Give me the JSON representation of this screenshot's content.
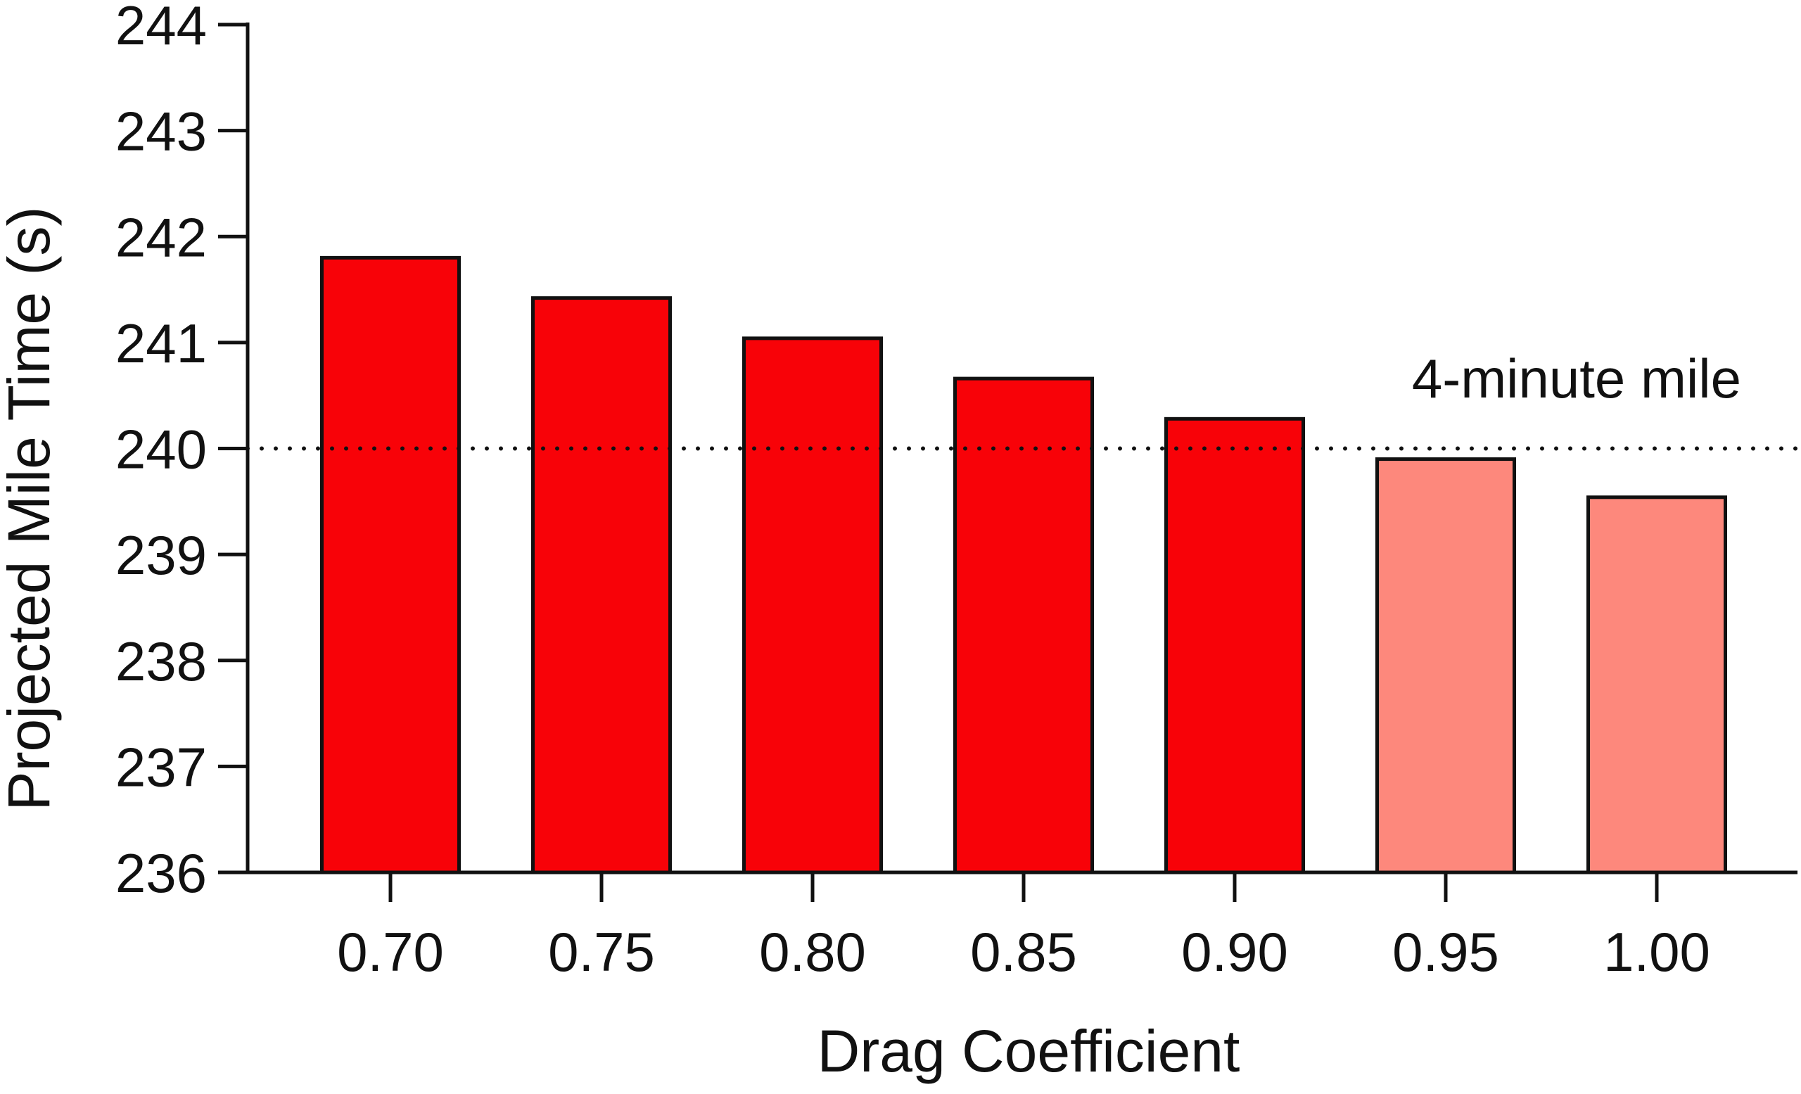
{
  "chart_data": {
    "type": "bar",
    "title": "",
    "xlabel": "Drag Coefficient",
    "ylabel": "Projected Mile Time (s)",
    "ylim": [
      236,
      244
    ],
    "yticks": [
      236,
      237,
      238,
      239,
      240,
      241,
      242,
      243,
      244
    ],
    "categories": [
      "0.70",
      "0.75",
      "0.80",
      "0.85",
      "0.90",
      "0.95",
      "1.00"
    ],
    "values": [
      241.8,
      241.42,
      241.04,
      240.66,
      240.28,
      239.9,
      239.54
    ],
    "bar_colors": [
      "#f80208",
      "#f80208",
      "#f80208",
      "#f80208",
      "#f80208",
      "#fd887c",
      "#fd887c"
    ],
    "reference_line": {
      "value": 240,
      "label": "4-minute mile",
      "style": "dotted"
    },
    "grid": false,
    "legend": "none"
  }
}
